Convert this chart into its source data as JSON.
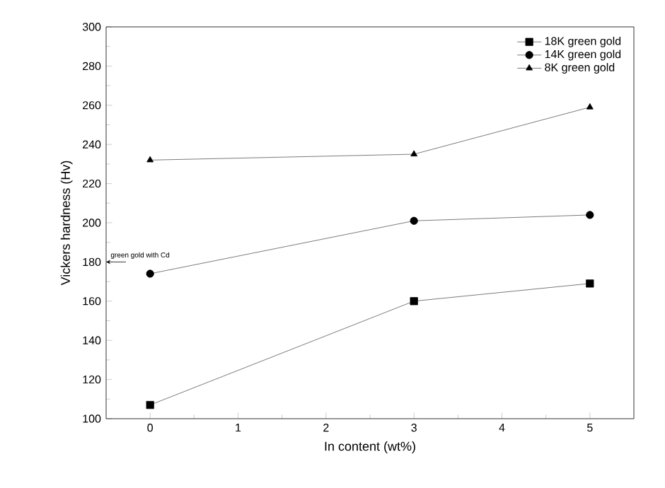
{
  "chart_data": {
    "type": "line",
    "xlabel": "In content (wt%)",
    "ylabel": "Vickers hardness (Hv)",
    "x": [
      0,
      3,
      5
    ],
    "series": [
      {
        "name": "18K green gold",
        "color": "#000000",
        "marker": "square",
        "values": [
          107,
          160,
          169
        ]
      },
      {
        "name": "14K green gold",
        "color": "#000000",
        "marker": "circle",
        "values": [
          174,
          201,
          204
        ]
      },
      {
        "name": "8K green gold",
        "color": "#000000",
        "marker": "triangle",
        "values": [
          232,
          235,
          259
        ]
      }
    ],
    "xlim": [
      -0.5,
      5.5
    ],
    "xticks": [
      0,
      1,
      2,
      3,
      4,
      5
    ],
    "ylim": [
      100,
      300
    ],
    "yticks": [
      100,
      120,
      140,
      160,
      180,
      200,
      220,
      240,
      260,
      280,
      300
    ],
    "annotations": [
      {
        "text": "green gold with Cd",
        "x": -0.5,
        "y": 180
      }
    ],
    "legend": "top right",
    "grid": false,
    "line_style": "solid"
  }
}
